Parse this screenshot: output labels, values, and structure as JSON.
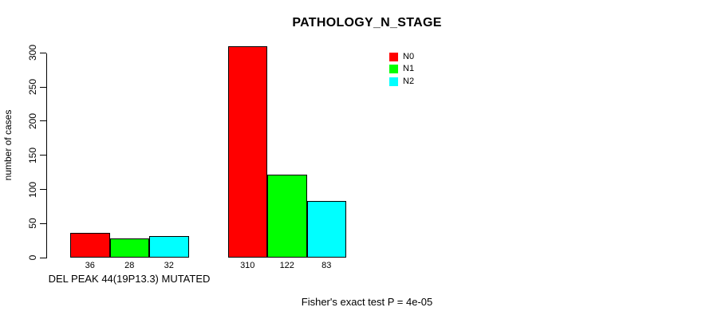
{
  "chart_data": {
    "type": "bar",
    "title": "PATHOLOGY_N_STAGE",
    "ylabel": "number of cases",
    "xlabel": "DEL PEAK 44(19P13.3) MUTATED",
    "footnote": "Fisher's exact test P = 4e-05",
    "ylim": [
      0,
      300
    ],
    "yticks": [
      0,
      50,
      100,
      150,
      200,
      250,
      300
    ],
    "grid": false,
    "legend_position": "top-right",
    "background_color": "#ffffff",
    "bar_border_color": "#000000",
    "series": [
      {
        "name": "N0",
        "color": "#FF0000"
      },
      {
        "name": "N1",
        "color": "#00FF00"
      },
      {
        "name": "N2",
        "color": "#00FFFF"
      }
    ],
    "groups": [
      {
        "label": "DEL PEAK 44(19P13.3) MUTATED",
        "values": [
          36,
          28,
          32
        ]
      },
      {
        "label": "",
        "values": [
          310,
          122,
          83
        ]
      }
    ]
  }
}
